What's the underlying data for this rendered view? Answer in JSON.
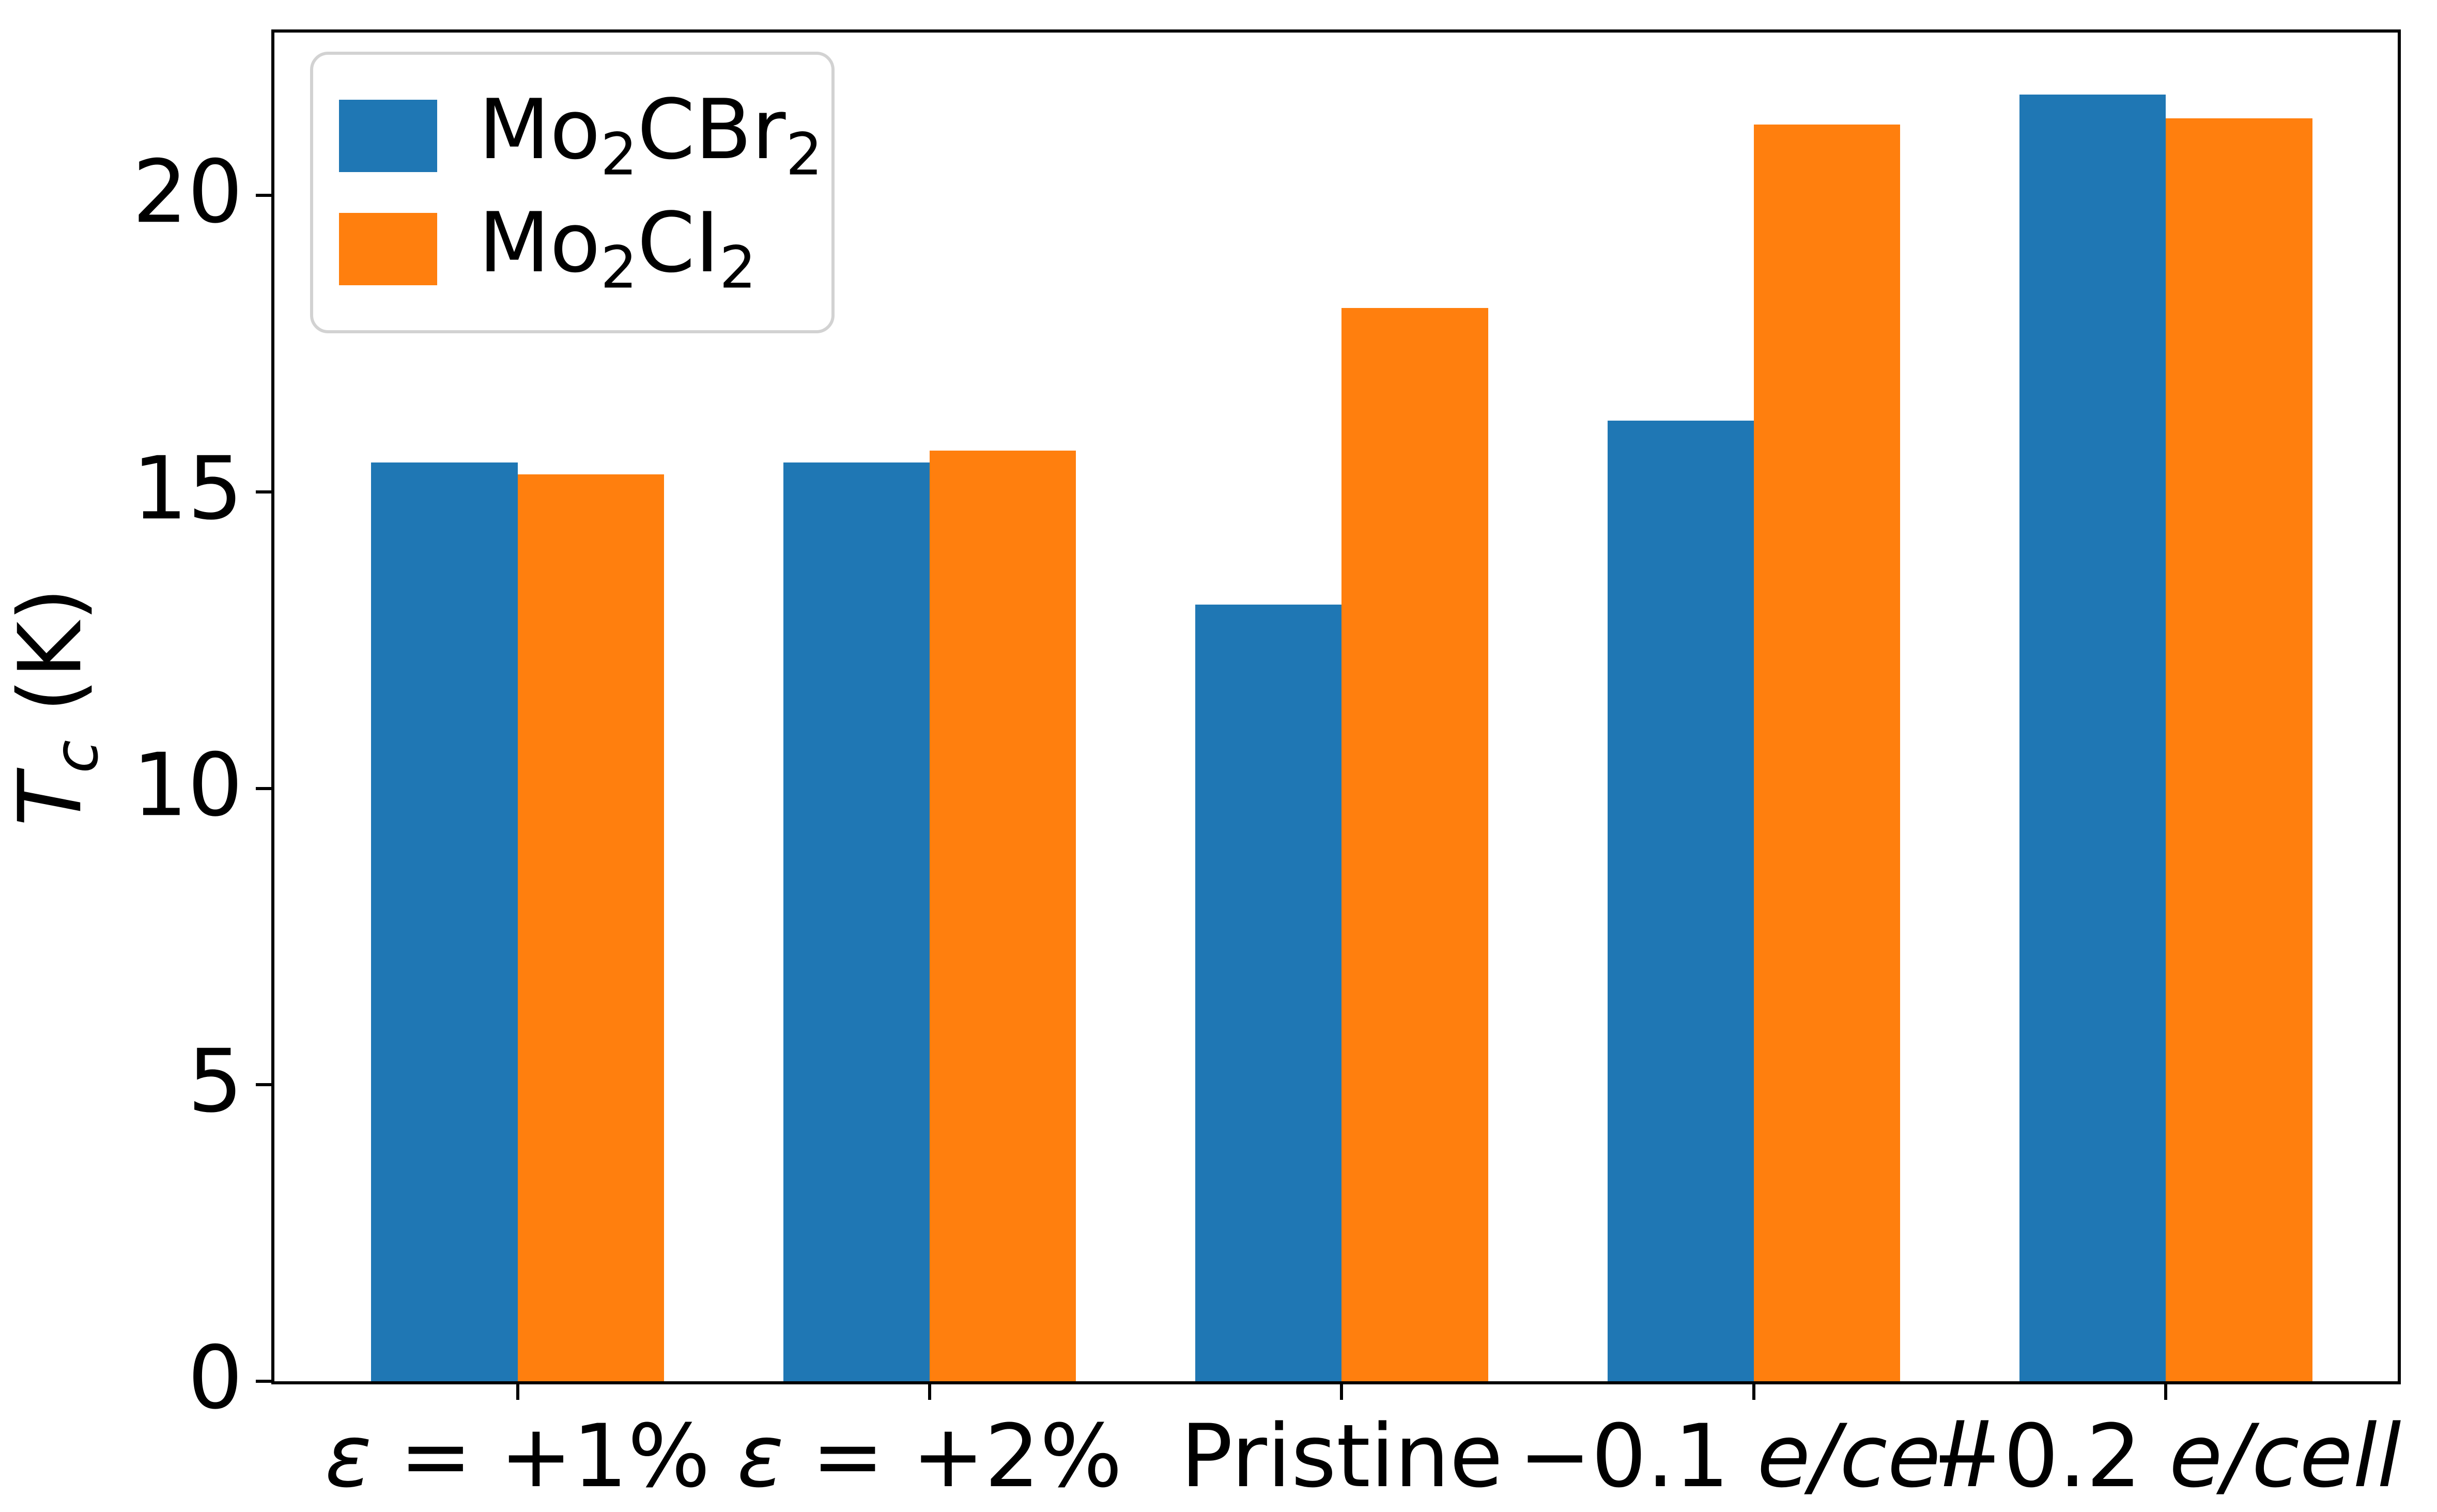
{
  "figure": {
    "background": "#ffffff"
  },
  "axes": {
    "ylabel_segments": [
      {
        "t": "T",
        "i": true
      },
      {
        "t": "c",
        "i": true,
        "sub": true
      },
      {
        "t": " (K)",
        "i": false
      }
    ],
    "yticks": [
      0,
      5,
      10,
      15,
      20
    ],
    "spine_color": "#000000",
    "tick_color": "#000000"
  },
  "chart_data": {
    "type": "bar",
    "title": "",
    "xlabel": "",
    "ylabel": "T_c (K)",
    "ylim": [
      0,
      22.75
    ],
    "xlim": [
      -0.59,
      4.5625
    ],
    "bar_width_units": 0.355,
    "grid": false,
    "legend_position": "upper left",
    "categories": [
      "ε = +1%",
      "ε = +2%",
      "Pristine",
      "−0.1 e/cell",
      "−0.2 e/cell"
    ],
    "category_segments": [
      [
        {
          "t": "ε",
          "i": true
        },
        {
          "t": " = +1%",
          "i": false
        }
      ],
      [
        {
          "t": "ε",
          "i": true
        },
        {
          "t": " = +2%",
          "i": false
        }
      ],
      [
        {
          "t": "Pristine",
          "i": false
        }
      ],
      [
        {
          "t": "−0.1 ",
          "i": false
        },
        {
          "t": "e/cell",
          "i": true
        }
      ],
      [
        {
          "t": "−0.2 ",
          "i": false
        },
        {
          "t": "e/cell",
          "i": true
        }
      ]
    ],
    "series": [
      {
        "name": "Mo2CBr2",
        "name_segments": [
          {
            "t": "Mo"
          },
          {
            "t": "2",
            "sub": true
          },
          {
            "t": "CBr"
          },
          {
            "t": "2",
            "sub": true
          }
        ],
        "color": "#1f77b4",
        "values": [
          15.5,
          15.5,
          13.1,
          16.2,
          21.7
        ]
      },
      {
        "name": "Mo2CI2",
        "name_segments": [
          {
            "t": "Mo"
          },
          {
            "t": "2",
            "sub": true
          },
          {
            "t": "CI"
          },
          {
            "t": "2",
            "sub": true
          }
        ],
        "color": "#ff7f0e",
        "values": [
          15.3,
          15.7,
          18.1,
          21.2,
          21.3
        ]
      }
    ],
    "legend_border_color": "#d2d2d2"
  }
}
